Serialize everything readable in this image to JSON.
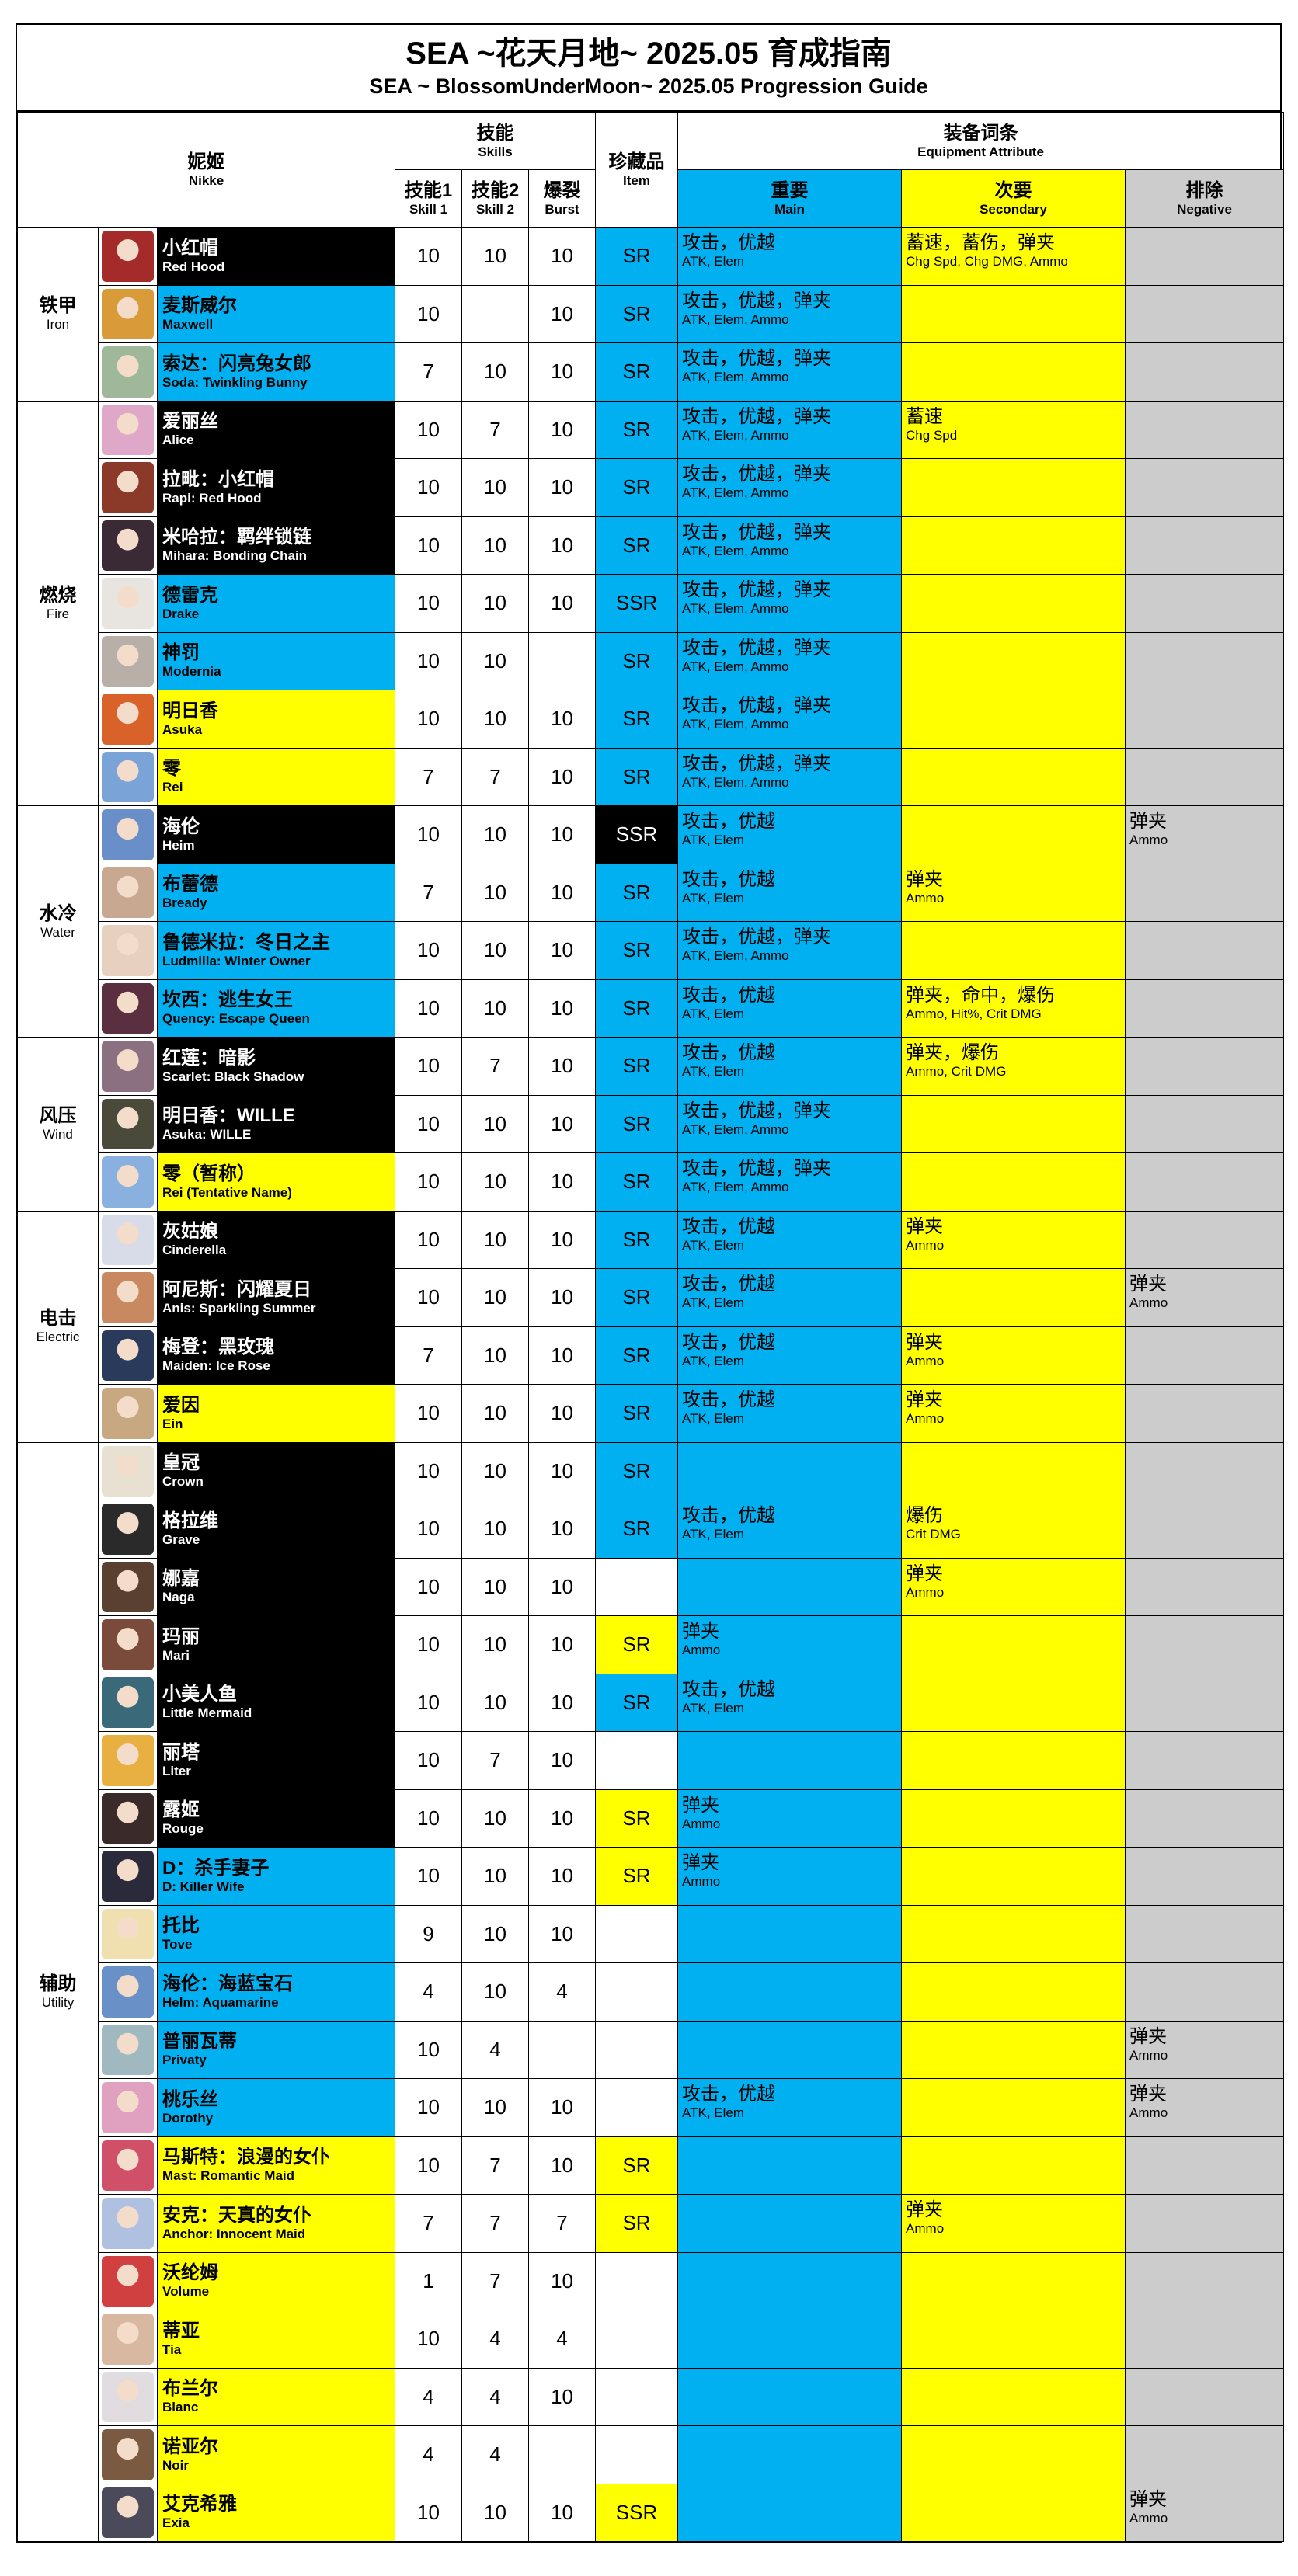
{
  "title": {
    "main": "SEA ~花天月地~ 2025.05 育成指南",
    "sub": "SEA ~ BlossomUnderMoon~ 2025.05 Progression Guide"
  },
  "header": {
    "nikke_zh": "妮姬",
    "nikke_en": "Nikke",
    "skills_zh": "技能",
    "skills_en": "Skills",
    "skill1_zh": "技能1",
    "skill1_en": "Skill 1",
    "skill2_zh": "技能2",
    "skill2_en": "Skill 2",
    "burst_zh": "爆裂",
    "burst_en": "Burst",
    "item_zh": "珍藏品",
    "item_en": "Item",
    "equip_zh": "装备词条",
    "equip_en": "Equipment Attribute",
    "main_zh": "重要",
    "main_en": "Main",
    "secondary_zh": "次要",
    "secondary_en": "Secondary",
    "negative_zh": "排除",
    "negative_en": "Negative"
  },
  "colors": {
    "blue": "#00b0f0",
    "yellow": "#ffff00",
    "gray": "#cccccc",
    "black": "#000000"
  },
  "groups": [
    {
      "zh": "铁甲",
      "en": "Iron",
      "rows": [
        {
          "zh": "小红帽",
          "en": "Red Hood",
          "name_bg": "black",
          "avatar": "#a52a2a",
          "s1": "10",
          "s2": "10",
          "burst": "10",
          "item": "SR",
          "item_bg": "blue",
          "main1": "攻击，优越",
          "main2": "ATK, Elem",
          "sec1": "蓄速，蓄伤，弹夹",
          "sec2": "Chg Spd, Chg DMG, Ammo",
          "neg1": "",
          "neg2": ""
        },
        {
          "zh": "麦斯威尔",
          "en": "Maxwell",
          "name_bg": "blue",
          "avatar": "#d99a3a",
          "s1": "10",
          "s2": "",
          "burst": "10",
          "item": "SR",
          "item_bg": "blue",
          "main1": "攻击，优越，弹夹",
          "main2": "ATK, Elem, Ammo",
          "sec1": "",
          "sec2": "",
          "neg1": "",
          "neg2": ""
        },
        {
          "zh": "索达：闪亮兔女郎",
          "en": "Soda: Twinkling Bunny",
          "name_bg": "blue",
          "avatar": "#9fb89a",
          "s1": "7",
          "s2": "10",
          "burst": "10",
          "item": "SR",
          "item_bg": "blue",
          "main1": "攻击，优越，弹夹",
          "main2": "ATK, Elem, Ammo",
          "sec1": "",
          "sec2": "",
          "neg1": "",
          "neg2": ""
        }
      ]
    },
    {
      "zh": "燃烧",
      "en": "Fire",
      "rows": [
        {
          "zh": "爱丽丝",
          "en": "Alice",
          "name_bg": "black",
          "avatar": "#e0a8c8",
          "s1": "10",
          "s2": "7",
          "burst": "10",
          "item": "SR",
          "item_bg": "blue",
          "main1": "攻击，优越，弹夹",
          "main2": "ATK, Elem, Ammo",
          "sec1": "蓄速",
          "sec2": "Chg Spd",
          "neg1": "",
          "neg2": ""
        },
        {
          "zh": "拉毗：小红帽",
          "en": "Rapi: Red Hood",
          "name_bg": "black",
          "avatar": "#8b3a2a",
          "s1": "10",
          "s2": "10",
          "burst": "10",
          "item": "SR",
          "item_bg": "blue",
          "main1": "攻击，优越，弹夹",
          "main2": "ATK, Elem, Ammo",
          "sec1": "",
          "sec2": "",
          "neg1": "",
          "neg2": ""
        },
        {
          "zh": "米哈拉：羁绊锁链",
          "en": "Mihara: Bonding Chain",
          "name_bg": "black",
          "avatar": "#3a2a35",
          "s1": "10",
          "s2": "10",
          "burst": "10",
          "item": "SR",
          "item_bg": "blue",
          "main1": "攻击，优越，弹夹",
          "main2": "ATK, Elem, Ammo",
          "sec1": "",
          "sec2": "",
          "neg1": "",
          "neg2": ""
        },
        {
          "zh": "德雷克",
          "en": "Drake",
          "name_bg": "blue",
          "avatar": "#e8e4e0",
          "s1": "10",
          "s2": "10",
          "burst": "10",
          "item": "SSR",
          "item_bg": "blue",
          "main1": "攻击，优越，弹夹",
          "main2": "ATK, Elem, Ammo",
          "sec1": "",
          "sec2": "",
          "neg1": "",
          "neg2": ""
        },
        {
          "zh": "神罚",
          "en": "Modernia",
          "name_bg": "blue",
          "avatar": "#b8b0a8",
          "s1": "10",
          "s2": "10",
          "burst": "",
          "item": "SR",
          "item_bg": "blue",
          "main1": "攻击，优越，弹夹",
          "main2": "ATK, Elem, Ammo",
          "sec1": "",
          "sec2": "",
          "neg1": "",
          "neg2": ""
        },
        {
          "zh": "明日香",
          "en": "Asuka",
          "name_bg": "yellow",
          "avatar": "#d9622a",
          "s1": "10",
          "s2": "10",
          "burst": "10",
          "item": "SR",
          "item_bg": "blue",
          "main1": "攻击，优越，弹夹",
          "main2": "ATK, Elem, Ammo",
          "sec1": "",
          "sec2": "",
          "neg1": "",
          "neg2": ""
        },
        {
          "zh": "零",
          "en": "Rei",
          "name_bg": "yellow",
          "avatar": "#7aa4d8",
          "s1": "7",
          "s2": "7",
          "burst": "10",
          "item": "SR",
          "item_bg": "blue",
          "main1": "攻击，优越，弹夹",
          "main2": "ATK, Elem, Ammo",
          "sec1": "",
          "sec2": "",
          "neg1": "",
          "neg2": ""
        }
      ]
    },
    {
      "zh": "水冷",
      "en": "Water",
      "rows": [
        {
          "zh": "海伦",
          "en": "Heim",
          "name_bg": "black",
          "avatar": "#6a8fc8",
          "s1": "10",
          "s2": "10",
          "burst": "10",
          "item": "SSR",
          "item_bg": "black",
          "main1": "攻击，优越",
          "main2": "ATK, Elem",
          "sec1": "",
          "sec2": "",
          "neg1": "弹夹",
          "neg2": "Ammo"
        },
        {
          "zh": "布蕾德",
          "en": "Bready",
          "name_bg": "blue",
          "avatar": "#c8a890",
          "s1": "7",
          "s2": "10",
          "burst": "10",
          "item": "SR",
          "item_bg": "blue",
          "main1": "攻击，优越",
          "main2": "ATK, Elem",
          "sec1": "弹夹",
          "sec2": "Ammo",
          "neg1": "",
          "neg2": ""
        },
        {
          "zh": "鲁德米拉：冬日之主",
          "en": "Ludmilla: Winter Owner",
          "name_bg": "blue",
          "avatar": "#e8d0c0",
          "s1": "10",
          "s2": "10",
          "burst": "10",
          "item": "SR",
          "item_bg": "blue",
          "main1": "攻击，优越，弹夹",
          "main2": "ATK, Elem, Ammo",
          "sec1": "",
          "sec2": "",
          "neg1": "",
          "neg2": ""
        },
        {
          "zh": "坎西：逃生女王",
          "en": "Quency: Escape Queen",
          "name_bg": "blue",
          "avatar": "#5a3040",
          "s1": "10",
          "s2": "10",
          "burst": "10",
          "item": "SR",
          "item_bg": "blue",
          "main1": "攻击，优越",
          "main2": "ATK, Elem",
          "sec1": "弹夹，命中，爆伤",
          "sec2": "Ammo, Hit%, Crit DMG",
          "neg1": "",
          "neg2": ""
        }
      ]
    },
    {
      "zh": "风压",
      "en": "Wind",
      "rows": [
        {
          "zh": "红莲：暗影",
          "en": "Scarlet: Black Shadow",
          "name_bg": "black",
          "avatar": "#8a7080",
          "s1": "10",
          "s2": "7",
          "burst": "10",
          "item": "SR",
          "item_bg": "blue",
          "main1": "攻击，优越",
          "main2": "ATK, Elem",
          "sec1": "弹夹，爆伤",
          "sec2": "Ammo, Crit DMG",
          "neg1": "",
          "neg2": ""
        },
        {
          "zh": "明日香：WILLE",
          "en": "Asuka: WILLE",
          "name_bg": "black",
          "avatar": "#4a4a3a",
          "s1": "10",
          "s2": "10",
          "burst": "10",
          "item": "SR",
          "item_bg": "blue",
          "main1": "攻击，优越，弹夹",
          "main2": "ATK, Elem, Ammo",
          "sec1": "",
          "sec2": "",
          "neg1": "",
          "neg2": ""
        },
        {
          "zh": "零（暂称）",
          "en": "Rei (Tentative Name)",
          "name_bg": "yellow",
          "avatar": "#8ab0e0",
          "s1": "10",
          "s2": "10",
          "burst": "10",
          "item": "SR",
          "item_bg": "blue",
          "main1": "攻击，优越，弹夹",
          "main2": "ATK, Elem, Ammo",
          "sec1": "",
          "sec2": "",
          "neg1": "",
          "neg2": ""
        }
      ]
    },
    {
      "zh": "电击",
      "en": "Electric",
      "rows": [
        {
          "zh": "灰姑娘",
          "en": "Cinderella",
          "name_bg": "black",
          "avatar": "#d8dce8",
          "s1": "10",
          "s2": "10",
          "burst": "10",
          "item": "SR",
          "item_bg": "blue",
          "main1": "攻击，优越",
          "main2": "ATK, Elem",
          "sec1": "弹夹",
          "sec2": "Ammo",
          "neg1": "",
          "neg2": ""
        },
        {
          "zh": "阿尼斯：闪耀夏日",
          "en": "Anis: Sparkling Summer",
          "name_bg": "black",
          "avatar": "#c88860",
          "s1": "10",
          "s2": "10",
          "burst": "10",
          "item": "SR",
          "item_bg": "blue",
          "main1": "攻击，优越",
          "main2": "ATK, Elem",
          "sec1": "",
          "sec2": "",
          "neg1": "弹夹",
          "neg2": "Ammo"
        },
        {
          "zh": "梅登：黑玫瑰",
          "en": "Maiden: Ice Rose",
          "name_bg": "black",
          "avatar": "#2a3a5a",
          "s1": "7",
          "s2": "10",
          "burst": "10",
          "item": "SR",
          "item_bg": "blue",
          "main1": "攻击，优越",
          "main2": "ATK, Elem",
          "sec1": "弹夹",
          "sec2": "Ammo",
          "neg1": "",
          "neg2": ""
        },
        {
          "zh": "爱因",
          "en": "Ein",
          "name_bg": "yellow",
          "avatar": "#c8a880",
          "s1": "10",
          "s2": "10",
          "burst": "10",
          "item": "SR",
          "item_bg": "blue",
          "main1": "攻击，优越",
          "main2": "ATK, Elem",
          "sec1": "弹夹",
          "sec2": "Ammo",
          "neg1": "",
          "neg2": ""
        }
      ]
    },
    {
      "zh": "辅助",
      "en": "Utility",
      "rows": [
        {
          "zh": "皇冠",
          "en": "Crown",
          "name_bg": "black",
          "avatar": "#e8e0d0",
          "s1": "10",
          "s2": "10",
          "burst": "10",
          "item": "SR",
          "item_bg": "blue",
          "main1": "",
          "main2": "",
          "sec1": "",
          "sec2": "",
          "neg1": "",
          "neg2": ""
        },
        {
          "zh": "格拉维",
          "en": "Grave",
          "name_bg": "black",
          "avatar": "#2a2a2a",
          "s1": "10",
          "s2": "10",
          "burst": "10",
          "item": "SR",
          "item_bg": "blue",
          "main1": "攻击，优越",
          "main2": "ATK, Elem",
          "sec1": "爆伤",
          "sec2": "Crit DMG",
          "neg1": "",
          "neg2": ""
        },
        {
          "zh": "娜嘉",
          "en": "Naga",
          "name_bg": "black",
          "avatar": "#5a4030",
          "s1": "10",
          "s2": "10",
          "burst": "10",
          "item": "",
          "item_bg": "white",
          "main1": "",
          "main2": "",
          "sec1": "弹夹",
          "sec2": "Ammo",
          "neg1": "",
          "neg2": ""
        },
        {
          "zh": "玛丽",
          "en": "Mari",
          "name_bg": "black",
          "avatar": "#7a4a3a",
          "s1": "10",
          "s2": "10",
          "burst": "10",
          "item": "SR",
          "item_bg": "yellow",
          "main1": "弹夹",
          "main2": "Ammo",
          "sec1": "",
          "sec2": "",
          "neg1": "",
          "neg2": ""
        },
        {
          "zh": "小美人鱼",
          "en": "Little Mermaid",
          "name_bg": "black",
          "avatar": "#3a6a7a",
          "s1": "10",
          "s2": "10",
          "burst": "10",
          "item": "SR",
          "item_bg": "blue",
          "main1": "攻击，优越",
          "main2": "ATK, Elem",
          "sec1": "",
          "sec2": "",
          "neg1": "",
          "neg2": ""
        },
        {
          "zh": "丽塔",
          "en": "Liter",
          "name_bg": "black",
          "avatar": "#e8b040",
          "s1": "10",
          "s2": "7",
          "burst": "10",
          "item": "",
          "item_bg": "white",
          "main1": "",
          "main2": "",
          "sec1": "",
          "sec2": "",
          "neg1": "",
          "neg2": ""
        },
        {
          "zh": "露姬",
          "en": "Rouge",
          "name_bg": "black",
          "avatar": "#3a2a2a",
          "s1": "10",
          "s2": "10",
          "burst": "10",
          "item": "SR",
          "item_bg": "yellow",
          "main1": "弹夹",
          "main2": "Ammo",
          "sec1": "",
          "sec2": "",
          "neg1": "",
          "neg2": ""
        },
        {
          "zh": "D：杀手妻子",
          "en": "D: Killer Wife",
          "name_bg": "blue",
          "avatar": "#2a2a3a",
          "s1": "10",
          "s2": "10",
          "burst": "10",
          "item": "SR",
          "item_bg": "yellow",
          "main1": "弹夹",
          "main2": "Ammo",
          "sec1": "",
          "sec2": "",
          "neg1": "",
          "neg2": ""
        },
        {
          "zh": "托比",
          "en": "Tove",
          "name_bg": "blue",
          "avatar": "#f0e0b0",
          "s1": "9",
          "s2": "10",
          "burst": "10",
          "item": "",
          "item_bg": "white",
          "main1": "",
          "main2": "",
          "sec1": "",
          "sec2": "",
          "neg1": "",
          "neg2": ""
        },
        {
          "zh": "海伦：海蓝宝石",
          "en": "Helm: Aquamarine",
          "name_bg": "blue",
          "avatar": "#6a90c8",
          "s1": "4",
          "s2": "10",
          "burst": "4",
          "item": "",
          "item_bg": "white",
          "main1": "",
          "main2": "",
          "sec1": "",
          "sec2": "",
          "neg1": "",
          "neg2": ""
        },
        {
          "zh": "普丽瓦蒂",
          "en": "Privaty",
          "name_bg": "blue",
          "avatar": "#a0b8c0",
          "s1": "10",
          "s2": "4",
          "burst": "",
          "item": "",
          "item_bg": "white",
          "main1": "",
          "main2": "",
          "sec1": "",
          "sec2": "",
          "neg1": "弹夹",
          "neg2": "Ammo"
        },
        {
          "zh": "桃乐丝",
          "en": "Dorothy",
          "name_bg": "blue",
          "avatar": "#e0a0c0",
          "s1": "10",
          "s2": "10",
          "burst": "10",
          "item": "",
          "item_bg": "white",
          "main1": "攻击，优越",
          "main2": "ATK, Elem",
          "sec1": "",
          "sec2": "",
          "neg1": "弹夹",
          "neg2": "Ammo"
        },
        {
          "zh": "马斯特：浪漫的女仆",
          "en": "Mast: Romantic Maid",
          "name_bg": "yellow",
          "avatar": "#d0506a",
          "s1": "10",
          "s2": "7",
          "burst": "10",
          "item": "SR",
          "item_bg": "yellow",
          "main1": "",
          "main2": "",
          "sec1": "",
          "sec2": "",
          "neg1": "",
          "neg2": ""
        },
        {
          "zh": "安克：天真的女仆",
          "en": "Anchor: Innocent Maid",
          "name_bg": "yellow",
          "avatar": "#b0c0e0",
          "s1": "7",
          "s2": "7",
          "burst": "7",
          "item": "SR",
          "item_bg": "yellow",
          "main1": "",
          "main2": "",
          "sec1": "弹夹",
          "sec2": "Ammo",
          "neg1": "",
          "neg2": ""
        },
        {
          "zh": "沃纶姆",
          "en": "Volume",
          "name_bg": "yellow",
          "avatar": "#d04040",
          "s1": "1",
          "s2": "7",
          "burst": "10",
          "item": "",
          "item_bg": "white",
          "main1": "",
          "main2": "",
          "sec1": "",
          "sec2": "",
          "neg1": "",
          "neg2": ""
        },
        {
          "zh": "蒂亚",
          "en": "Tia",
          "name_bg": "yellow",
          "avatar": "#d8b8a0",
          "s1": "10",
          "s2": "4",
          "burst": "4",
          "item": "",
          "item_bg": "white",
          "main1": "",
          "main2": "",
          "sec1": "",
          "sec2": "",
          "neg1": "",
          "neg2": ""
        },
        {
          "zh": "布兰尔",
          "en": "Blanc",
          "name_bg": "yellow",
          "avatar": "#e0dce0",
          "s1": "4",
          "s2": "4",
          "burst": "10",
          "item": "",
          "item_bg": "white",
          "main1": "",
          "main2": "",
          "sec1": "",
          "sec2": "",
          "neg1": "",
          "neg2": ""
        },
        {
          "zh": "诺亚尔",
          "en": "Noir",
          "name_bg": "yellow",
          "avatar": "#7a5a40",
          "s1": "4",
          "s2": "4",
          "burst": "",
          "item": "",
          "item_bg": "white",
          "main1": "",
          "main2": "",
          "sec1": "",
          "sec2": "",
          "neg1": "",
          "neg2": ""
        },
        {
          "zh": "艾克希雅",
          "en": "Exia",
          "name_bg": "yellow",
          "avatar": "#4a4a5a",
          "s1": "10",
          "s2": "10",
          "burst": "10",
          "item": "SSR",
          "item_bg": "yellow",
          "main1": "",
          "main2": "",
          "sec1": "",
          "sec2": "",
          "neg1": "弹夹",
          "neg2": "Ammo"
        }
      ]
    }
  ]
}
